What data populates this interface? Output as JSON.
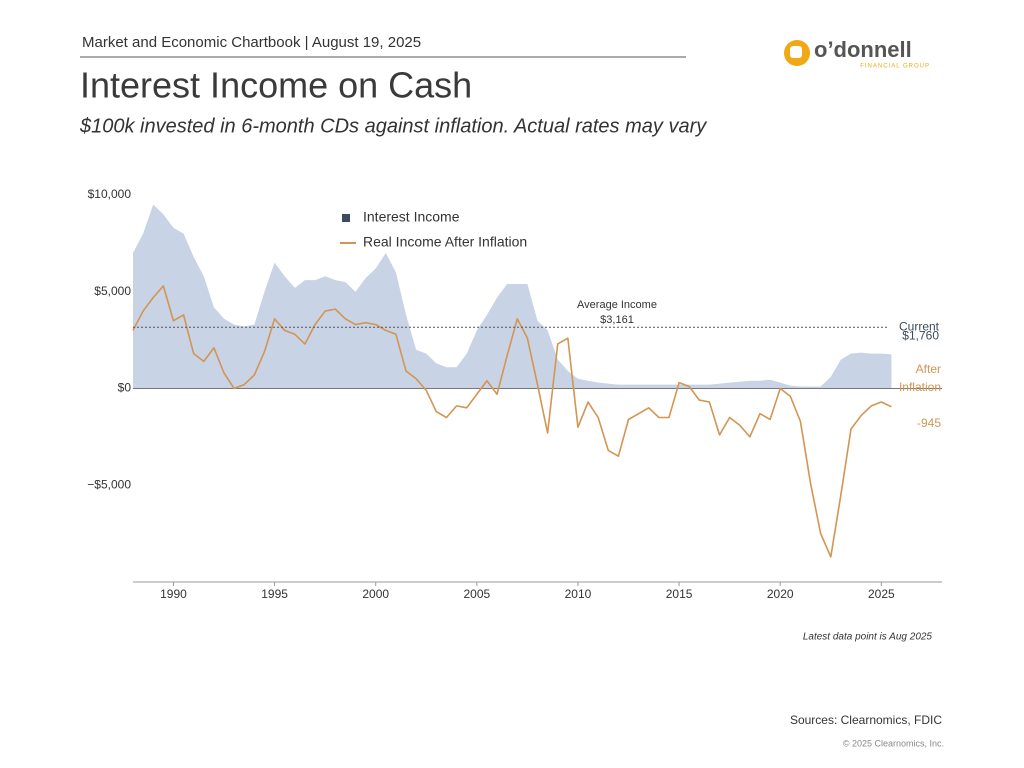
{
  "header": {
    "chartbook": "Market and Economic Chartbook | August 19, 2025",
    "logo_name": "o’donnell",
    "logo_sub": "FINANCIAL GROUP"
  },
  "chart_data": {
    "type": "combo",
    "title": "Interest Income on Cash",
    "subtitle": "$100k invested in 6-month CDs against inflation. Actual rates may vary",
    "x": [
      1988.0,
      1988.5,
      1989.0,
      1989.5,
      1990.0,
      1990.5,
      1991.0,
      1991.5,
      1992.0,
      1992.5,
      1993.0,
      1993.5,
      1994.0,
      1994.5,
      1995.0,
      1995.5,
      1996.0,
      1996.5,
      1997.0,
      1997.5,
      1998.0,
      1998.5,
      1999.0,
      1999.5,
      2000.0,
      2000.5,
      2001.0,
      2001.5,
      2002.0,
      2002.5,
      2003.0,
      2003.5,
      2004.0,
      2004.5,
      2005.0,
      2005.5,
      2006.0,
      2006.5,
      2007.0,
      2007.5,
      2008.0,
      2008.5,
      2009.0,
      2009.5,
      2010.0,
      2010.5,
      2011.0,
      2011.5,
      2012.0,
      2012.5,
      2013.0,
      2013.5,
      2014.0,
      2014.5,
      2015.0,
      2015.5,
      2016.0,
      2016.5,
      2017.0,
      2017.5,
      2018.0,
      2018.5,
      2019.0,
      2019.5,
      2020.0,
      2020.5,
      2021.0,
      2021.5,
      2022.0,
      2022.5,
      2023.0,
      2023.5,
      2024.0,
      2024.5,
      2025.0,
      2025.5
    ],
    "series": [
      {
        "name": "Interest Income",
        "type": "area",
        "color": "#c8d3e6",
        "legend_color": "#3d4b5c",
        "values": [
          7000,
          8000,
          9500,
          9000,
          8300,
          8000,
          6800,
          5800,
          4200,
          3600,
          3300,
          3200,
          3300,
          5000,
          6500,
          5800,
          5200,
          5600,
          5600,
          5800,
          5600,
          5500,
          5000,
          5700,
          6200,
          7000,
          6000,
          3800,
          2000,
          1800,
          1300,
          1100,
          1100,
          1800,
          3000,
          3800,
          4700,
          5400,
          5400,
          5400,
          3500,
          3000,
          1500,
          900,
          500,
          400,
          300,
          250,
          200,
          200,
          200,
          200,
          200,
          200,
          200,
          200,
          200,
          200,
          250,
          300,
          350,
          400,
          400,
          450,
          300,
          150,
          100,
          100,
          100,
          600,
          1500,
          1800,
          1850,
          1800,
          1800,
          1760
        ]
      },
      {
        "name": "Real Income After Inflation",
        "type": "line",
        "color": "#d39552",
        "values": [
          3000,
          4000,
          4700,
          5300,
          3500,
          3800,
          1800,
          1400,
          2100,
          800,
          0,
          200,
          700,
          1900,
          3600,
          3000,
          2800,
          2300,
          3300,
          4000,
          4100,
          3600,
          3300,
          3400,
          3300,
          3000,
          2800,
          900,
          500,
          -100,
          -1200,
          -1500,
          -900,
          -1000,
          -300,
          400,
          -300,
          1700,
          3600,
          2600,
          200,
          -2300,
          2300,
          2600,
          -2000,
          -700,
          -1500,
          -3200,
          -3500,
          -1600,
          -1300,
          -1000,
          -1500,
          -1500,
          300,
          100,
          -600,
          -700,
          -2400,
          -1500,
          -1900,
          -2500,
          -1300,
          -1600,
          0,
          -400,
          -1700,
          -4900,
          -7500,
          -8700,
          -5500,
          -2100,
          -1400,
          -900,
          -700,
          -945
        ]
      }
    ],
    "xlim": [
      1988,
      2028
    ],
    "xticks": [
      1990,
      1995,
      2000,
      2005,
      2010,
      2015,
      2020,
      2025
    ],
    "ylim": [
      -10000,
      11000
    ],
    "yticks": [
      {
        "value": -5000,
        "label": "−$5,000"
      },
      {
        "value": 0,
        "label": "$0"
      },
      {
        "value": 5000,
        "label": "$5,000"
      },
      {
        "value": 10000,
        "label": "$10,000"
      }
    ],
    "legend": "top-left",
    "average": {
      "label": "Average Income",
      "value": 3161,
      "value_label": "$3,161"
    },
    "current": {
      "label": "Current",
      "value": 1760,
      "value_label": "$1,760"
    },
    "after_inflation": {
      "label_lines": [
        "After",
        "Inflation"
      ],
      "value": -945,
      "value_label": "-945"
    },
    "note": "Latest data point is Aug 2025"
  },
  "footer": {
    "sources": "Sources: Clearnomics, FDIC",
    "copyright": "© 2025 Clearnomics, Inc."
  }
}
